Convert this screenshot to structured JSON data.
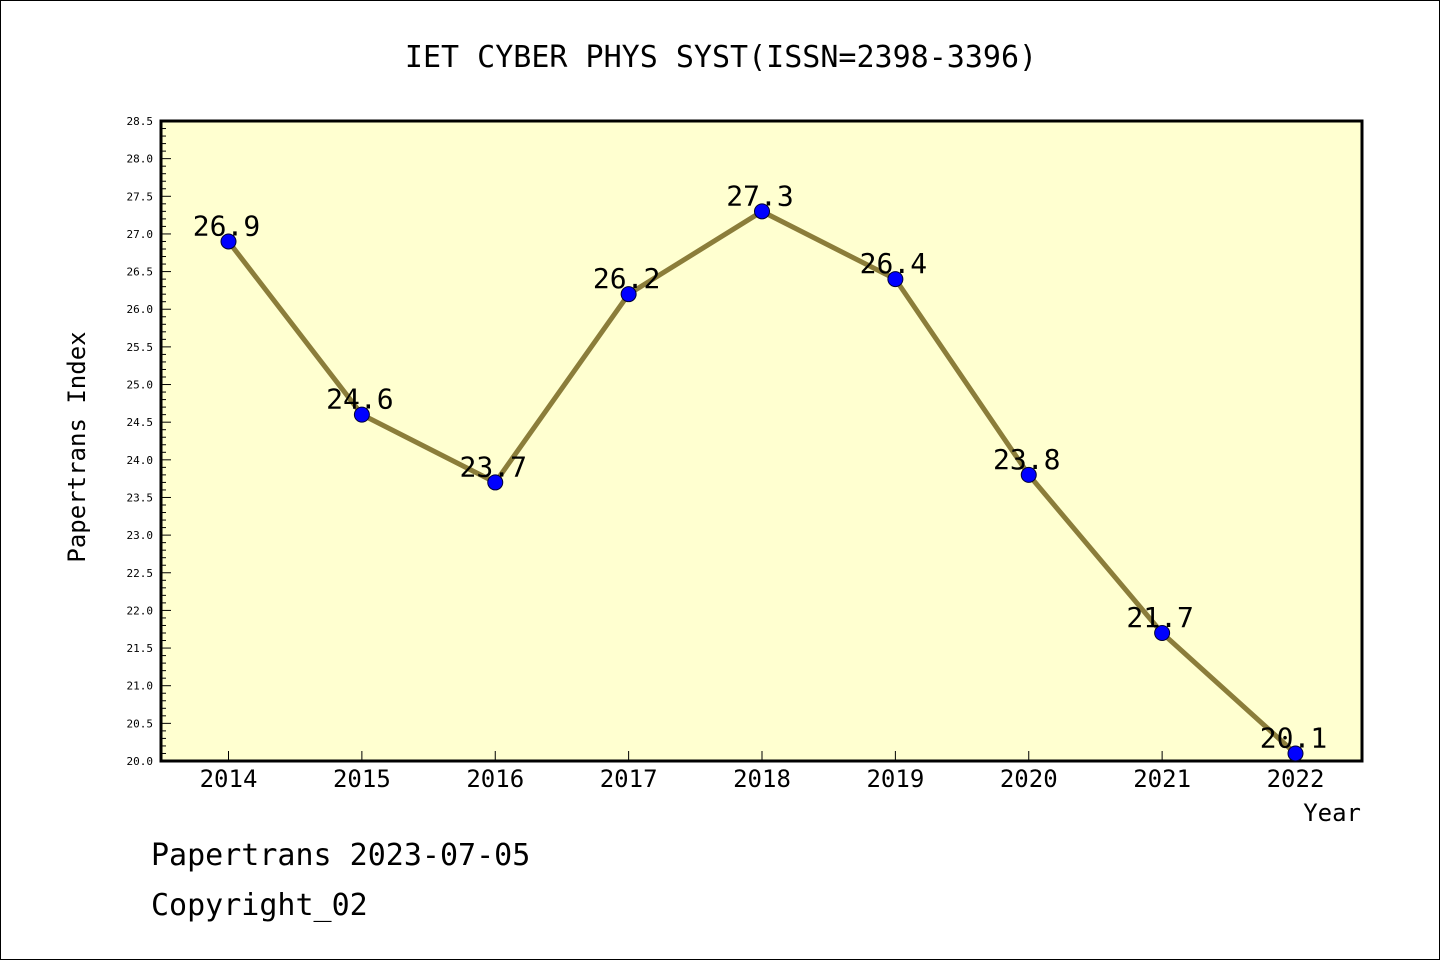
{
  "chart_data": {
    "type": "line",
    "title": "IET CYBER PHYS SYST(ISSN=2398-3396)",
    "xlabel": "Year",
    "ylabel": "Papertrans Index",
    "categories": [
      "2014",
      "2015",
      "2016",
      "2017",
      "2018",
      "2019",
      "2020",
      "2021",
      "2022"
    ],
    "series": [
      {
        "values": [
          26.9,
          24.6,
          23.7,
          26.2,
          27.3,
          26.4,
          23.8,
          21.7,
          20.1
        ]
      }
    ],
    "data_labels": [
      "26.9",
      "24.6",
      "23.7",
      "26.2",
      "27.3",
      "26.4",
      "23.8",
      "21.7",
      "20.1"
    ],
    "ylim": [
      20.0,
      28.5
    ],
    "yticks": [
      "20.0",
      "20.5",
      "21.0",
      "21.5",
      "22.0",
      "22.5",
      "23.0",
      "23.5",
      "24.0",
      "24.5",
      "25.0",
      "25.5",
      "26.0",
      "26.5",
      "27.0",
      "27.5",
      "28.0",
      "28.5"
    ],
    "grid": false,
    "colors": {
      "plot_background": "#ffffd0",
      "line": "#8b7d3a",
      "marker": "#0000ff"
    }
  },
  "footer": {
    "line1": "Papertrans 2023-07-05",
    "line2": "Copyright_02"
  }
}
